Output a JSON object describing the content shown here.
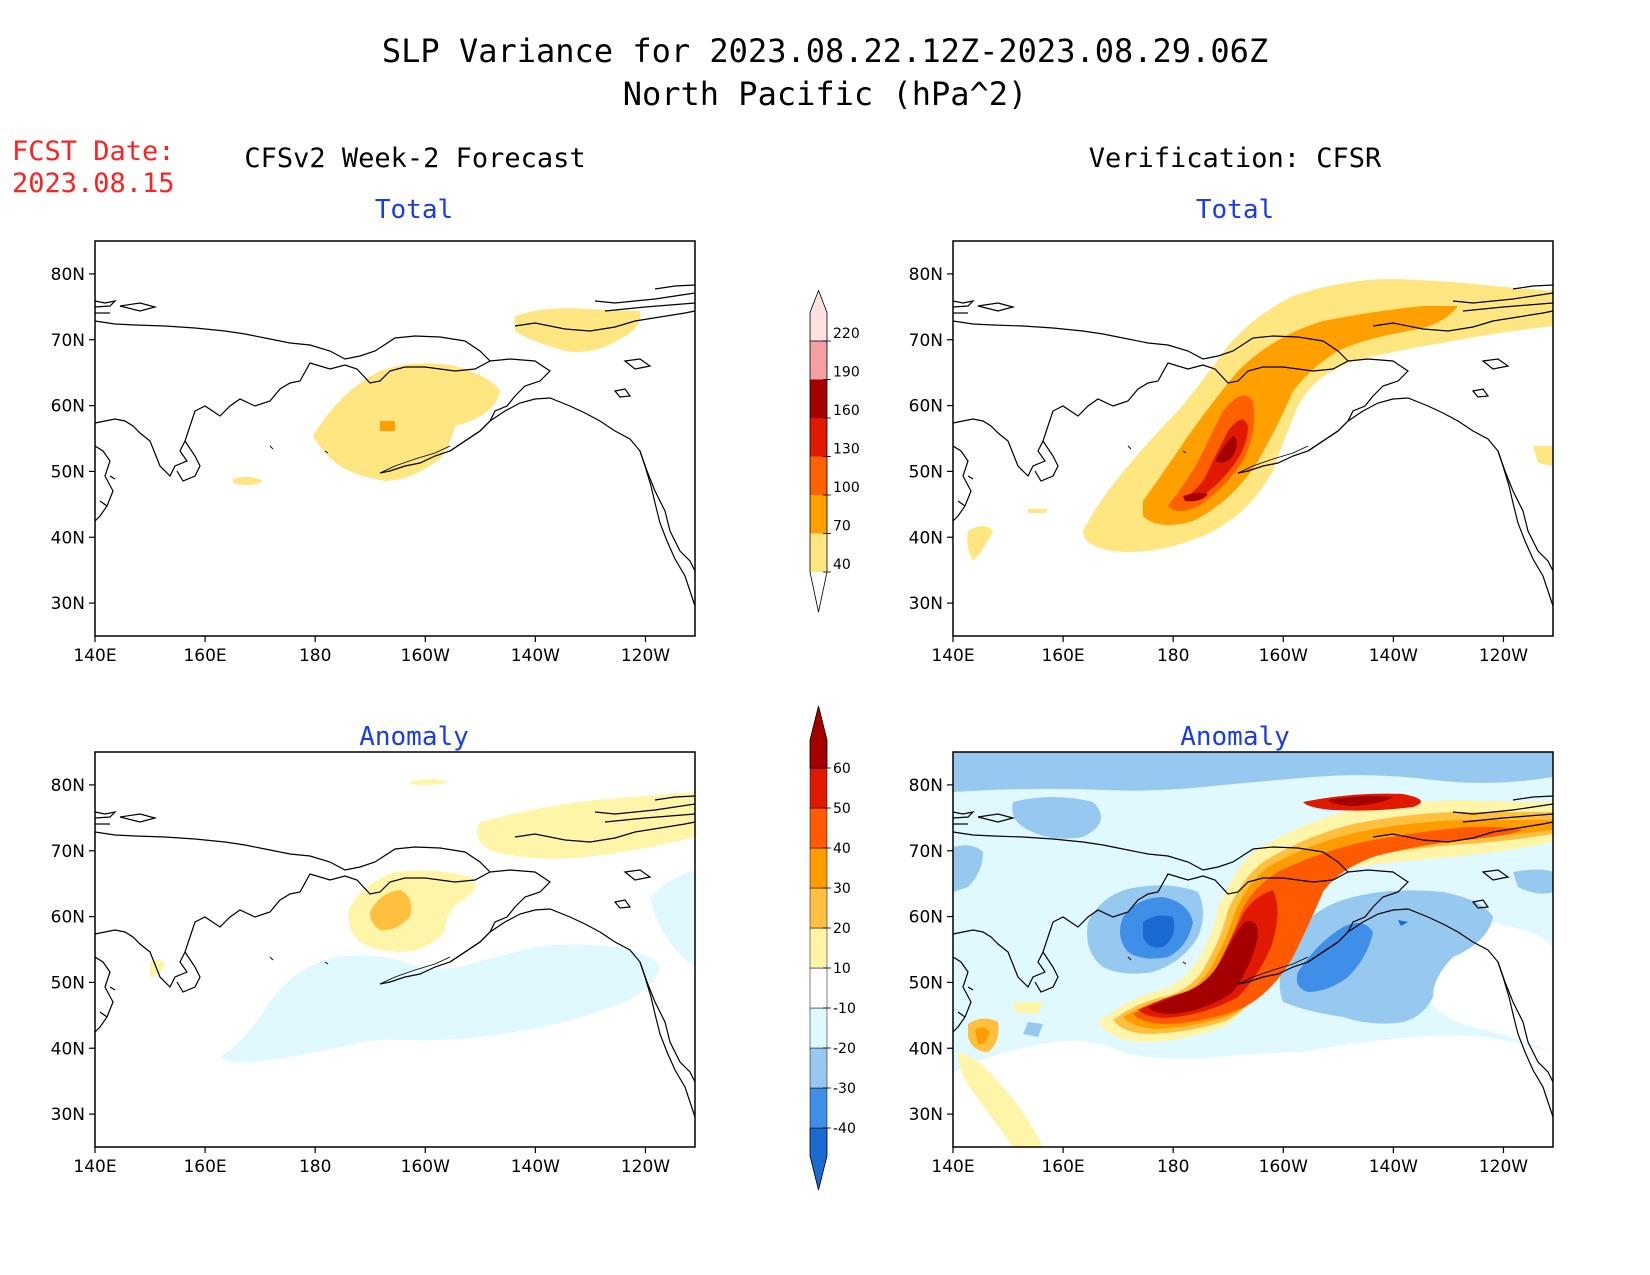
{
  "figure": {
    "title_line1": "SLP Variance for 2023.08.22.12Z-2023.08.29.06Z",
    "title_line2": "North Pacific (hPa^2)",
    "fcst_date_label": "FCST Date:",
    "fcst_date_value": "2023.08.15"
  },
  "columns": {
    "left_heading": "CFSv2 Week-2 Forecast",
    "right_heading": "Verification: CFSR"
  },
  "panels": {
    "top_left_subtitle": "Total",
    "top_right_subtitle": "Total",
    "bottom_left_subtitle": "Anomaly",
    "bottom_right_subtitle": "Anomaly"
  },
  "axes": {
    "lat_labels": [
      "80N",
      "70N",
      "60N",
      "50N",
      "40N",
      "30N"
    ],
    "lat_values": [
      80,
      70,
      60,
      50,
      40,
      30
    ],
    "lon_labels": [
      "140E",
      "160E",
      "180",
      "160W",
      "140W",
      "120W"
    ],
    "lon_values": [
      140,
      160,
      180,
      200,
      220,
      240
    ],
    "lon_range": [
      140,
      249
    ],
    "lat_range": [
      25,
      85
    ]
  },
  "colors": {
    "title_text": "#000000",
    "subtitle_text": "#1a3ce8",
    "fcst_text": "#ff2020"
  },
  "colorbars": {
    "total": {
      "levels": [
        "40",
        "70",
        "100",
        "130",
        "160",
        "190",
        "220"
      ],
      "colors": [
        "#ffe680",
        "#ffa000",
        "#ff6000",
        "#e01a00",
        "#a50000",
        "#f4a0a0",
        "#fde0e0"
      ]
    },
    "anomaly": {
      "levels": [
        "-40",
        "-30",
        "-20",
        "-10",
        "10",
        "20",
        "30",
        "40",
        "50",
        "60"
      ],
      "colors": [
        "#1a6ad2",
        "#3f8fe8",
        "#96c8f0",
        "#e0f8ff",
        "#ffffff",
        "#fff5a8",
        "#ffc040",
        "#ff9c00",
        "#ff5a00",
        "#e01a00",
        "#a50000"
      ]
    }
  },
  "map_data": {
    "type": "contour-map",
    "region": "North Pacific",
    "units": "hPa^2",
    "panels": [
      {
        "name": "forecast_total",
        "max_approx": 75,
        "max_location": "~57N 168W"
      },
      {
        "name": "verification_total",
        "max_approx": 150,
        "max_location": "~52N 168W"
      },
      {
        "name": "forecast_anomaly",
        "max_approx": 25,
        "min_approx": -15
      },
      {
        "name": "verification_anomaly",
        "max_approx": 60,
        "min_approx": -35
      }
    ]
  }
}
